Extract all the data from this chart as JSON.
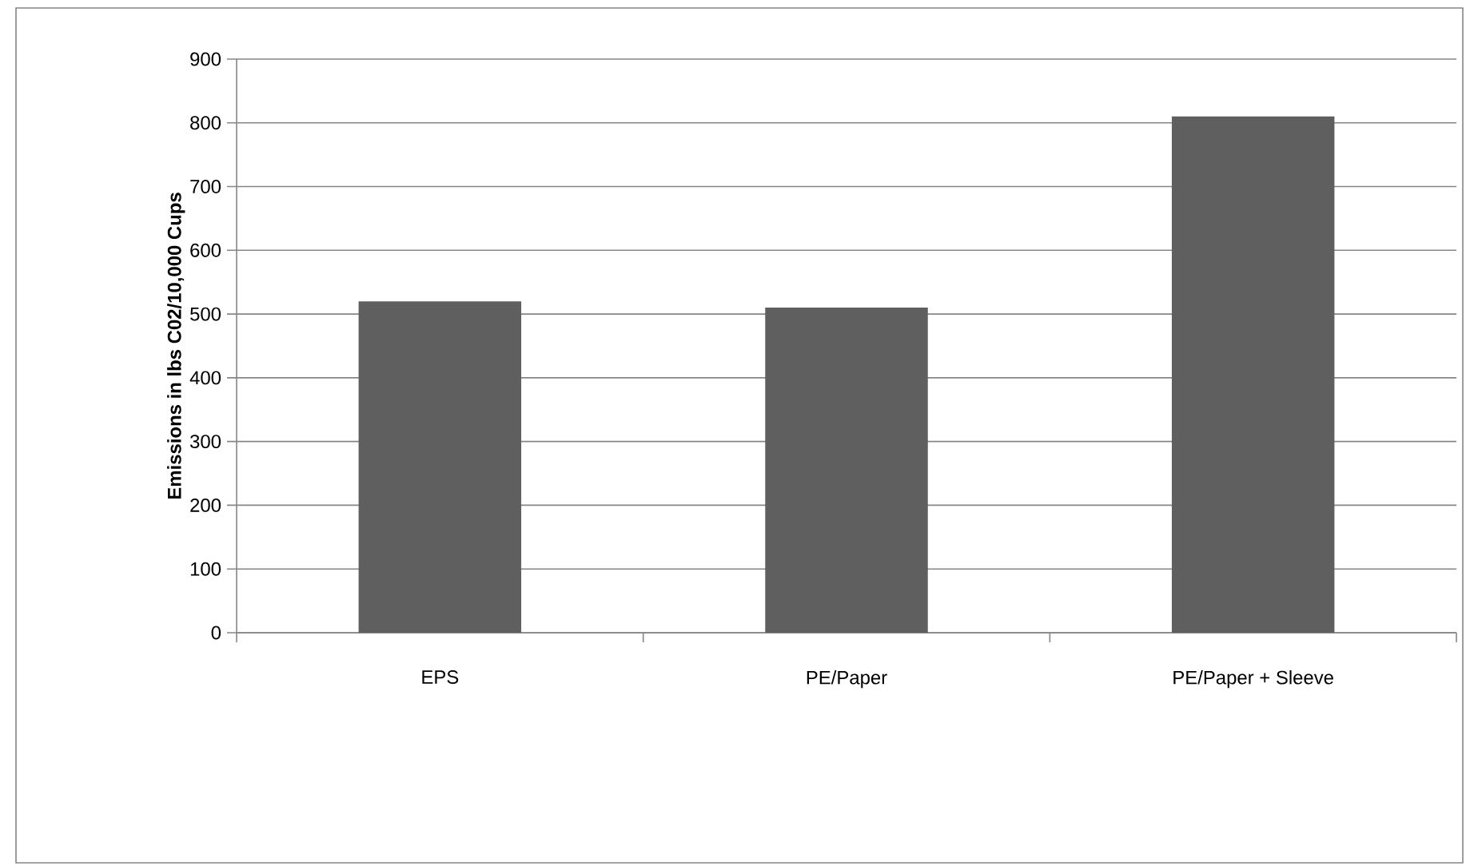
{
  "chart_data": {
    "type": "bar",
    "ylabel": "Emissions in lbs C02/10,000 Cups",
    "categories": [
      "EPS",
      "PE/Paper",
      "PE/Paper + Sleeve"
    ],
    "values": [
      520,
      510,
      810
    ],
    "color": "#5f5f5f",
    "ylim": [
      0,
      900
    ],
    "yticks": [
      0,
      100,
      200,
      300,
      400,
      500,
      600,
      700,
      800,
      900
    ],
    "grid": "y"
  }
}
